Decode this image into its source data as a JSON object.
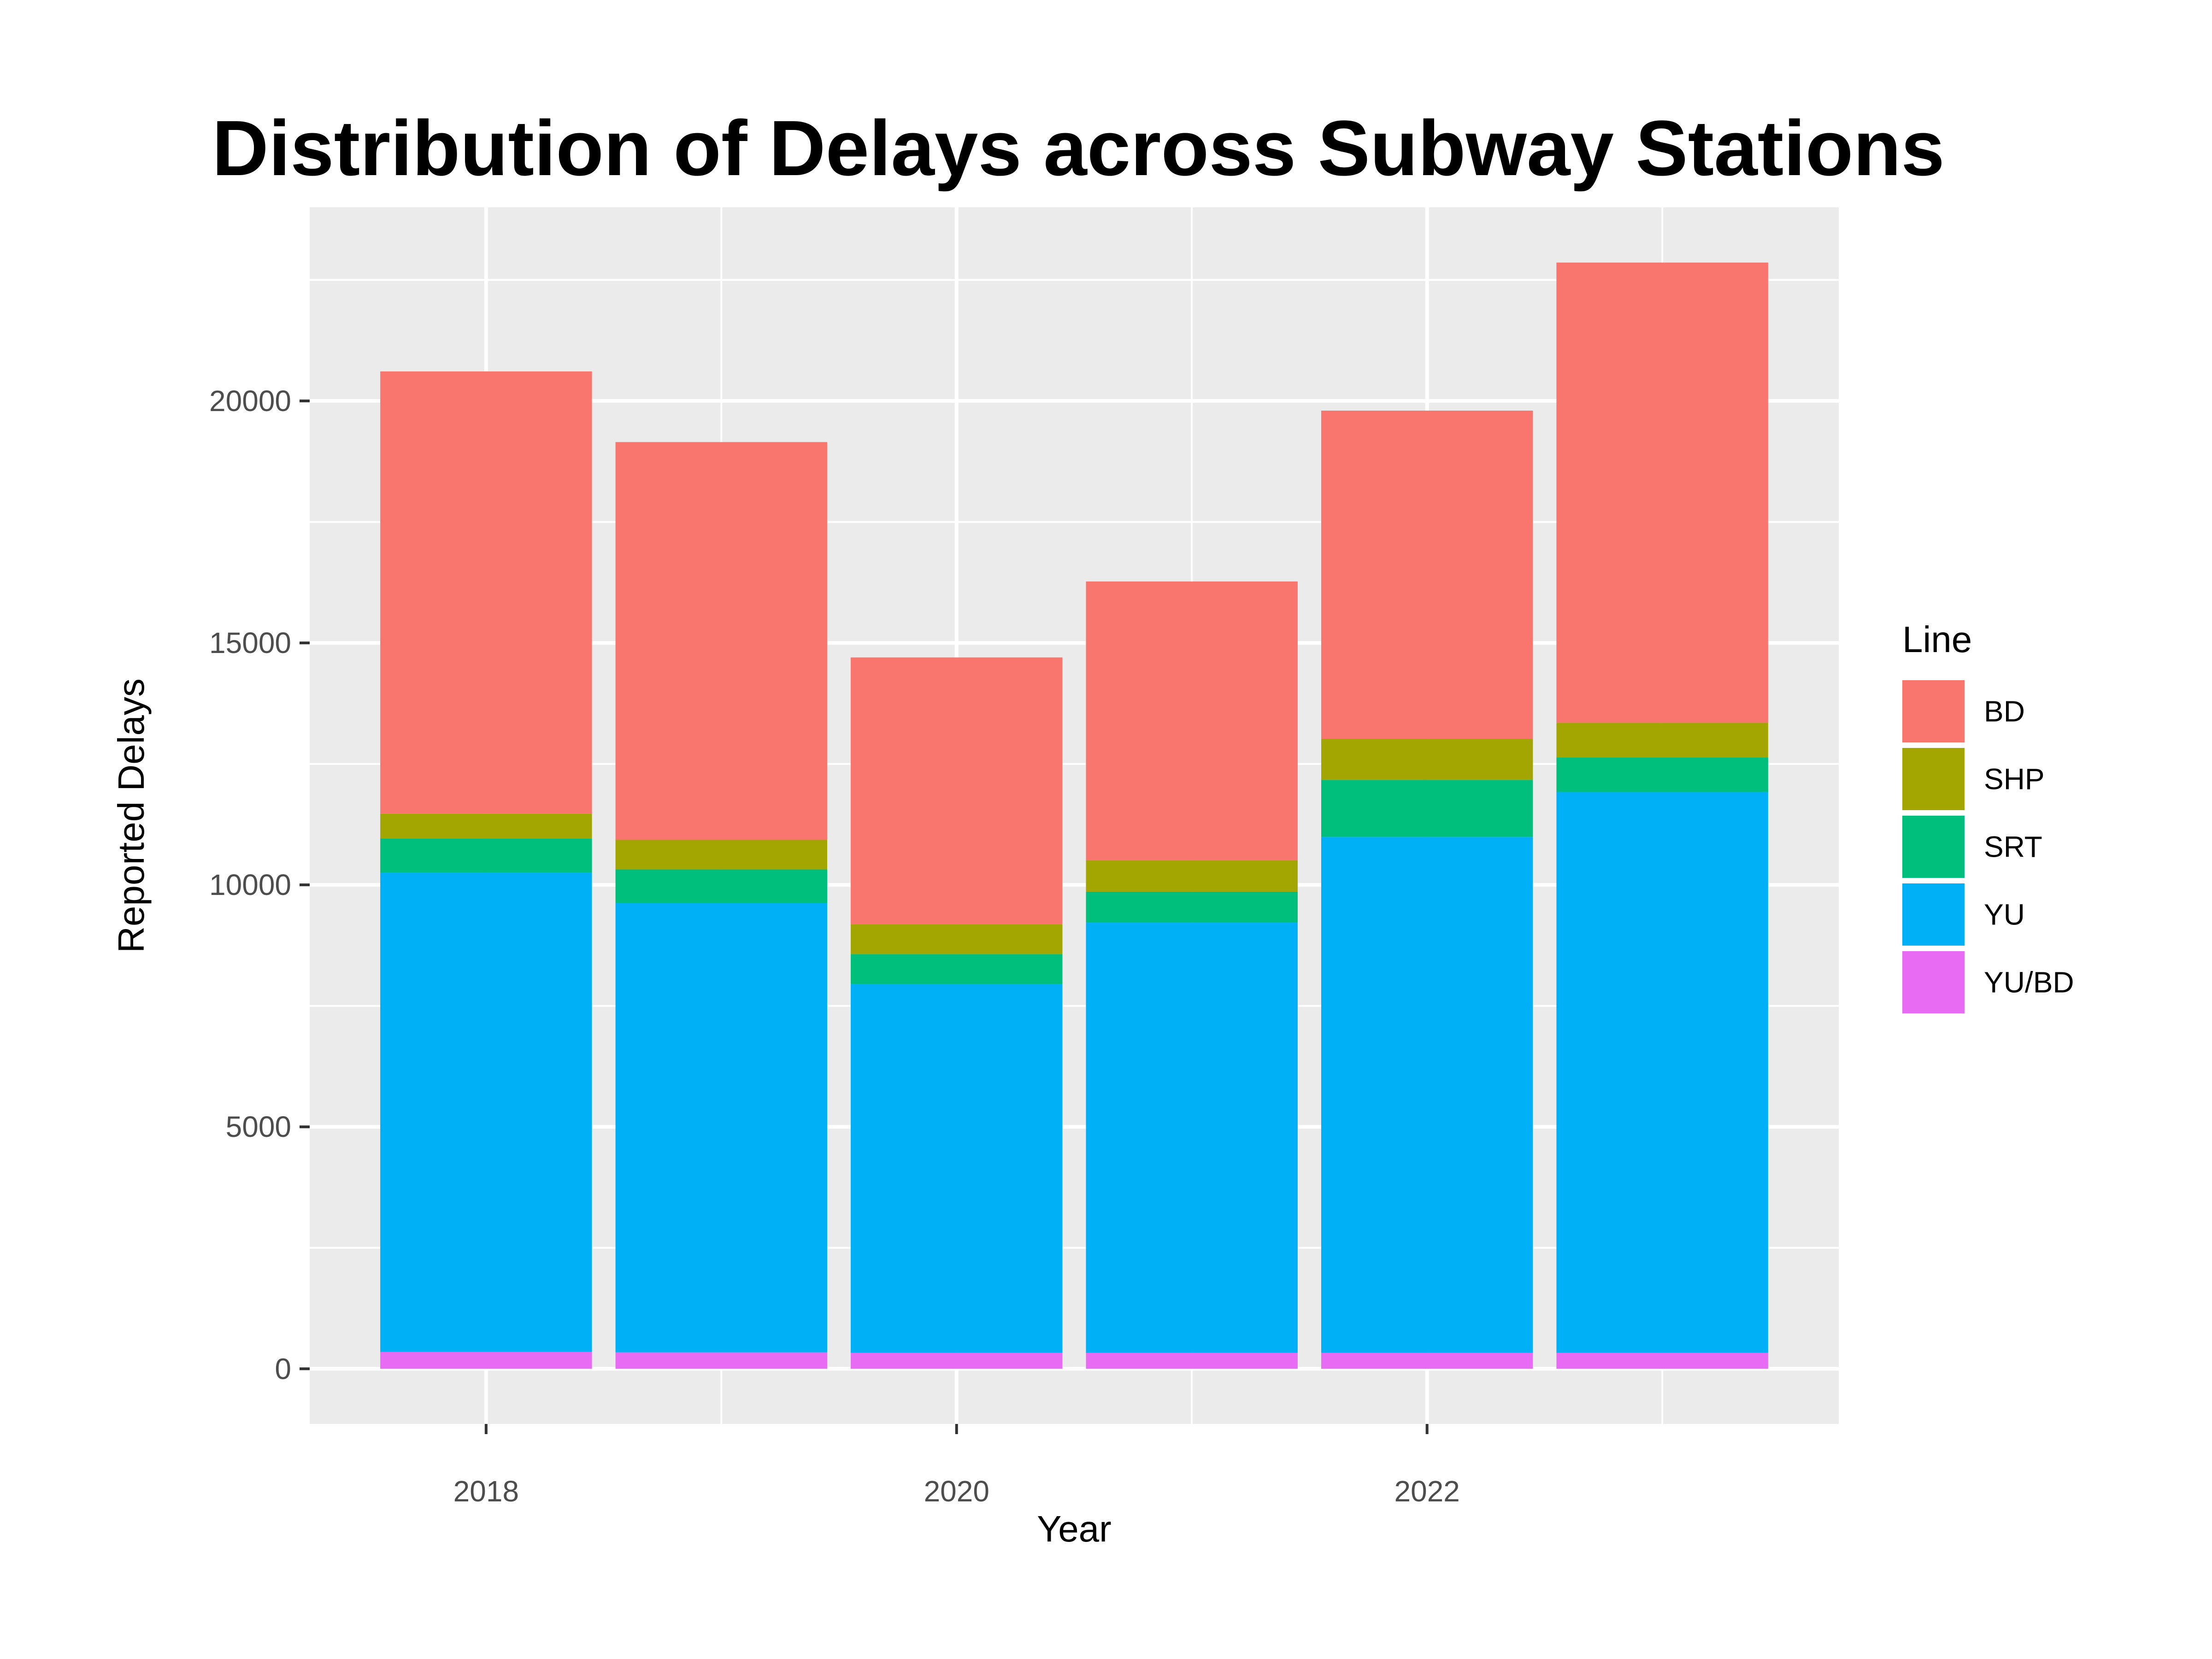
{
  "chart_data": {
    "type": "bar",
    "stacked": true,
    "title": "Distribution of Delays across Subway Stations",
    "xlabel": "Year",
    "ylabel": "Reported Delays",
    "x": [
      2018,
      2019,
      2020,
      2021,
      2022,
      2023
    ],
    "x_ticks": [
      2018,
      2020,
      2022
    ],
    "x_range": [
      2017.25,
      2023.75
    ],
    "y_ticks": [
      0,
      5000,
      10000,
      15000,
      20000
    ],
    "ylim": [
      -1140,
      24000
    ],
    "grid": true,
    "legend_title": "Line",
    "legend_position": "right",
    "series": [
      {
        "name": "YU/BD",
        "color": "#E76BF3",
        "values": [
          350,
          340,
          330,
          330,
          330,
          330
        ]
      },
      {
        "name": "YU",
        "color": "#00B0F6",
        "values": [
          9900,
          9290,
          7620,
          8890,
          10660,
          11590
        ]
      },
      {
        "name": "SRT",
        "color": "#00BF7D",
        "values": [
          710,
          690,
          620,
          640,
          1180,
          710
        ]
      },
      {
        "name": "SHP",
        "color": "#A3A500",
        "values": [
          510,
          610,
          620,
          650,
          850,
          720
        ]
      },
      {
        "name": "BD",
        "color": "#F8766D",
        "values": [
          9140,
          8220,
          5510,
          5760,
          6780,
          9510
        ]
      }
    ]
  }
}
